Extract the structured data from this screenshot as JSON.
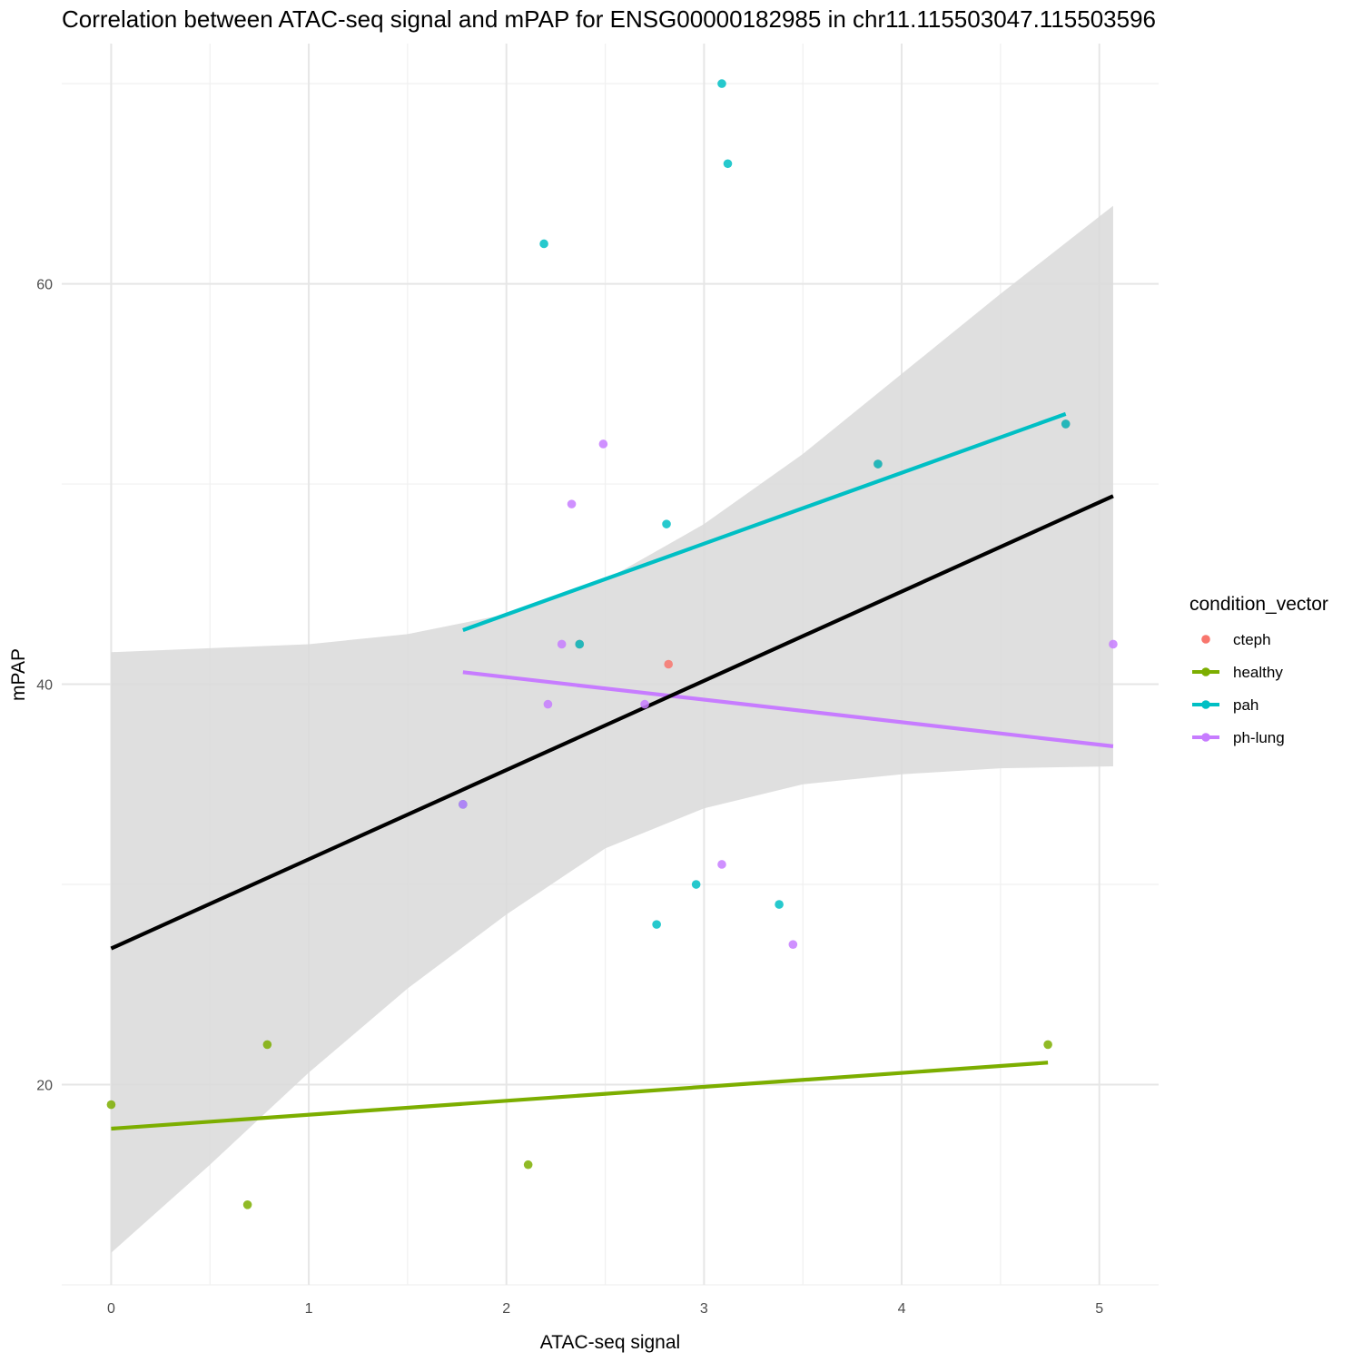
{
  "chart_data": {
    "type": "scatter",
    "title": "Correlation between ATAC-seq signal and mPAP for ENSG00000182985 in chr11.115503047.115503596",
    "xlabel": "ATAC-seq signal",
    "ylabel": "mPAP",
    "xlim": [
      -0.25,
      5.3
    ],
    "ylim": [
      10,
      72
    ],
    "x_ticks": [
      0,
      1,
      2,
      3,
      4,
      5
    ],
    "y_ticks": [
      20,
      40,
      60
    ],
    "grid": true,
    "legend": {
      "title": "condition_vector",
      "position": "right",
      "entries": [
        {
          "label": "cteph",
          "color": "#F8766D",
          "has_line": false
        },
        {
          "label": "healthy",
          "color": "#7CAE00",
          "has_line": true
        },
        {
          "label": "pah",
          "color": "#00BFC4",
          "has_line": true
        },
        {
          "label": "ph-lung",
          "color": "#C77CFF",
          "has_line": true
        }
      ]
    },
    "series": [
      {
        "name": "cteph",
        "color": "#F8766D",
        "points": [
          [
            2.82,
            41
          ],
          [
            1.78,
            34
          ],
          [
            2.37,
            42
          ],
          [
            3.88,
            51
          ],
          [
            4.83,
            53
          ]
        ]
      },
      {
        "name": "healthy",
        "color": "#7CAE00",
        "points": [
          [
            0.0,
            19
          ],
          [
            0.69,
            14
          ],
          [
            0.79,
            22
          ],
          [
            2.11,
            16
          ],
          [
            4.74,
            22
          ]
        ]
      },
      {
        "name": "pah",
        "color": "#00BFC4",
        "points": [
          [
            3.09,
            70
          ],
          [
            3.12,
            66
          ],
          [
            2.19,
            62
          ],
          [
            2.81,
            48
          ],
          [
            2.96,
            30
          ],
          [
            3.38,
            29
          ],
          [
            2.76,
            28
          ],
          [
            3.88,
            51
          ],
          [
            4.83,
            53
          ],
          [
            2.37,
            42
          ],
          [
            1.78,
            34
          ]
        ]
      },
      {
        "name": "ph-lung",
        "color": "#C77CFF",
        "points": [
          [
            2.49,
            52
          ],
          [
            2.33,
            49
          ],
          [
            2.28,
            42
          ],
          [
            2.21,
            39
          ],
          [
            2.7,
            39
          ],
          [
            1.78,
            34
          ],
          [
            3.09,
            31
          ],
          [
            3.45,
            27
          ],
          [
            5.07,
            42
          ]
        ]
      }
    ],
    "fit_lines": [
      {
        "name": "healthy",
        "color": "#7CAE00",
        "x": [
          0.0,
          4.74
        ],
        "y": [
          17.8,
          21.1
        ]
      },
      {
        "name": "pah",
        "color": "#00BFC4",
        "x": [
          1.78,
          4.83
        ],
        "y": [
          42.7,
          53.5
        ]
      },
      {
        "name": "ph-lung",
        "color": "#C77CFF",
        "x": [
          1.78,
          5.07
        ],
        "y": [
          40.6,
          36.9
        ]
      },
      {
        "name": "overall",
        "color": "#000000",
        "x": [
          0.0,
          5.07
        ],
        "y": [
          26.8,
          49.4
        ]
      }
    ],
    "confidence_band": {
      "color": "#d9d9d9",
      "x": [
        0.0,
        0.5,
        1.0,
        1.5,
        2.0,
        2.5,
        3.0,
        3.5,
        4.0,
        4.5,
        5.07
      ],
      "upper": [
        41.6,
        41.8,
        42.0,
        42.5,
        43.5,
        45.2,
        48.0,
        51.5,
        55.5,
        59.5,
        63.9
      ],
      "lower": [
        11.6,
        16.0,
        20.6,
        24.8,
        28.5,
        31.8,
        33.8,
        35.0,
        35.5,
        35.8,
        35.9
      ]
    }
  }
}
